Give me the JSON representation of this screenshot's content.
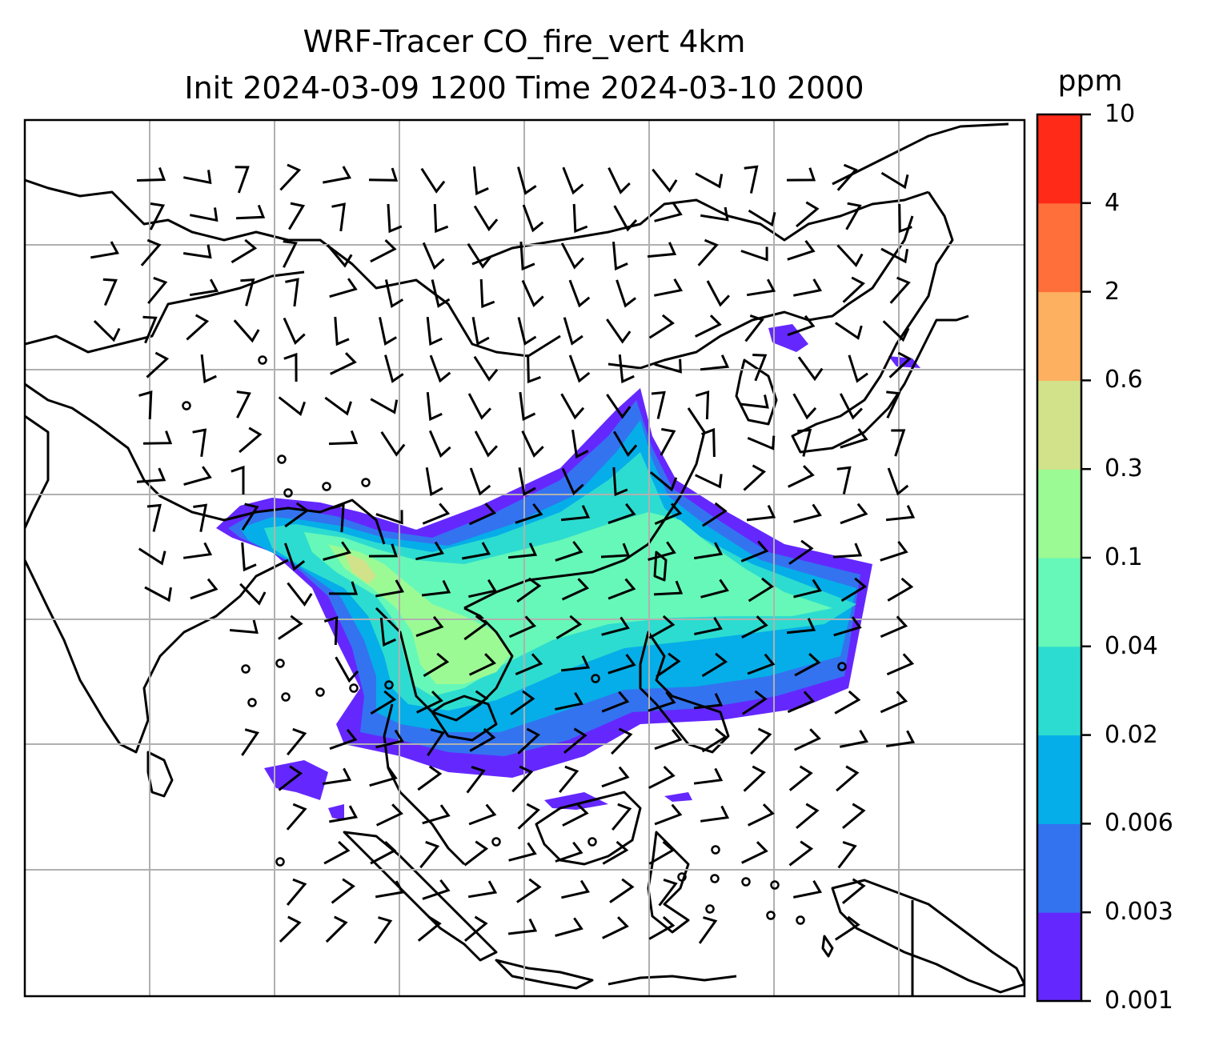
{
  "title": {
    "line1": "WRF-Tracer CO_fire_vert 4km",
    "line2": "Init 2024-03-09 1200 Time 2024-03-10 2000"
  },
  "colorbar": {
    "unit": "ppm",
    "levels": [
      "0.001",
      "0.003",
      "0.006",
      "0.02",
      "0.04",
      "0.1",
      "0.3",
      "0.6",
      "2",
      "4",
      "10"
    ],
    "colors": [
      "#6428ff",
      "#3373f0",
      "#05aee8",
      "#2ddcd0",
      "#66f8b8",
      "#9cfa94",
      "#d1e28a",
      "#fdb060",
      "#ff6f3a",
      "#ff2a18"
    ]
  },
  "map": {
    "coastline_color": "#000000",
    "grid_color": "#b0b0b0",
    "barb_color": "#000000"
  }
}
